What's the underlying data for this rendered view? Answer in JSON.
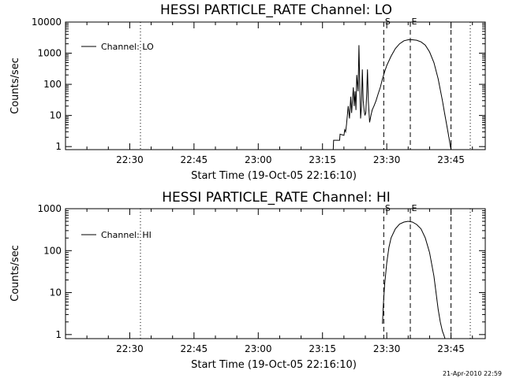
{
  "footer": {
    "timestamp": "21-Apr-2010 22:59"
  },
  "chart_data": [
    {
      "type": "line",
      "title": "HESSI PARTICLE_RATE Channel: LO",
      "xlabel": "Start Time (19-Oct-05 22:16:10)",
      "ylabel": "Counts/sec",
      "xlim_minutes": [
        0,
        98
      ],
      "ylim": [
        0.8,
        10000
      ],
      "yscale": "log",
      "x_ticks": [
        {
          "t": 15,
          "label": "22:30"
        },
        {
          "t": 30,
          "label": "22:45"
        },
        {
          "t": 45,
          "label": "23:00"
        },
        {
          "t": 60,
          "label": "23:15"
        },
        {
          "t": 75,
          "label": "23:30"
        },
        {
          "t": 90,
          "label": "23:45"
        }
      ],
      "y_ticks": [
        {
          "v": 1,
          "label": "1"
        },
        {
          "v": 10,
          "label": "10"
        },
        {
          "v": 100,
          "label": "100"
        },
        {
          "v": 1000,
          "label": "1000"
        },
        {
          "v": 10000,
          "label": "10000"
        }
      ],
      "legend": {
        "label": "Channel: LO",
        "position": "top-left"
      },
      "markers": [
        {
          "t": 74.3,
          "style": "dashed",
          "label": "S"
        },
        {
          "t": 80.5,
          "style": "dashed",
          "label": "E"
        },
        {
          "t": 90.0,
          "style": "dashed",
          "label": ""
        },
        {
          "t": 17.5,
          "style": "dotted",
          "label": ""
        },
        {
          "t": 94.5,
          "style": "dotted",
          "label": ""
        }
      ],
      "series": [
        {
          "name": "Channel: LO",
          "x": [
            62.5,
            62.6,
            64.0,
            64.1,
            65.0,
            65.2,
            65.4,
            65.6,
            66.0,
            66.3,
            66.6,
            66.8,
            67.2,
            67.4,
            67.6,
            67.8,
            68.0,
            68.3,
            68.5,
            68.7,
            68.9,
            69.1,
            69.3,
            69.5,
            69.7,
            69.9,
            70.1,
            70.3,
            70.5,
            70.7,
            71.0,
            71.3,
            71.6,
            72.0,
            72.5,
            73.0,
            73.5,
            74.0,
            74.5,
            75.0,
            76.0,
            77.0,
            78.0,
            79.0,
            80.0,
            81.0,
            82.0,
            83.0,
            84.0,
            85.0,
            86.0,
            87.0,
            88.0,
            88.5,
            89.0,
            89.5,
            89.8,
            90.0
          ],
          "y": [
            0.8,
            1.6,
            1.6,
            2.5,
            2.3,
            3.5,
            3.0,
            5.0,
            20,
            8,
            40,
            12,
            80,
            20,
            60,
            15,
            200,
            60,
            1800,
            100,
            8,
            20,
            300,
            30,
            15,
            10,
            12,
            40,
            300,
            30,
            6,
            10,
            15,
            20,
            30,
            50,
            80,
            150,
            250,
            400,
            800,
            1400,
            2000,
            2500,
            2700,
            2700,
            2600,
            2300,
            1800,
            1100,
            500,
            150,
            30,
            12,
            5,
            2,
            1.1,
            0.8
          ]
        }
      ]
    },
    {
      "type": "line",
      "title": "HESSI PARTICLE_RATE Channel: HI",
      "xlabel": "Start Time (19-Oct-05 22:16:10)",
      "ylabel": "Counts/sec",
      "xlim_minutes": [
        0,
        98
      ],
      "ylim": [
        0.8,
        1000
      ],
      "yscale": "log",
      "x_ticks": [
        {
          "t": 15,
          "label": "22:30"
        },
        {
          "t": 30,
          "label": "22:45"
        },
        {
          "t": 45,
          "label": "23:00"
        },
        {
          "t": 60,
          "label": "23:15"
        },
        {
          "t": 75,
          "label": "23:30"
        },
        {
          "t": 90,
          "label": "23:45"
        }
      ],
      "y_ticks": [
        {
          "v": 1,
          "label": "1"
        },
        {
          "v": 10,
          "label": "10"
        },
        {
          "v": 100,
          "label": "100"
        },
        {
          "v": 1000,
          "label": "1000"
        }
      ],
      "legend": {
        "label": "Channel: HI",
        "position": "top-left"
      },
      "markers": [
        {
          "t": 74.3,
          "style": "dashed",
          "label": "S"
        },
        {
          "t": 80.5,
          "style": "dashed",
          "label": "E"
        },
        {
          "t": 90.0,
          "style": "dashed",
          "label": ""
        },
        {
          "t": 17.5,
          "style": "dotted",
          "label": ""
        },
        {
          "t": 94.5,
          "style": "dotted",
          "label": ""
        }
      ],
      "series": [
        {
          "name": "Channel: HI",
          "x": [
            74.0,
            74.2,
            74.5,
            75.0,
            75.5,
            76.0,
            77.0,
            78.0,
            79.0,
            80.0,
            81.0,
            82.0,
            83.0,
            84.0,
            85.0,
            86.0,
            86.5,
            87.0,
            87.5,
            88.0,
            88.3,
            88.6
          ],
          "y": [
            1.8,
            5,
            15,
            50,
            120,
            200,
            330,
            430,
            480,
            500,
            480,
            420,
            330,
            200,
            90,
            25,
            10,
            4,
            2,
            1.2,
            1.0,
            0.8
          ]
        }
      ]
    }
  ]
}
